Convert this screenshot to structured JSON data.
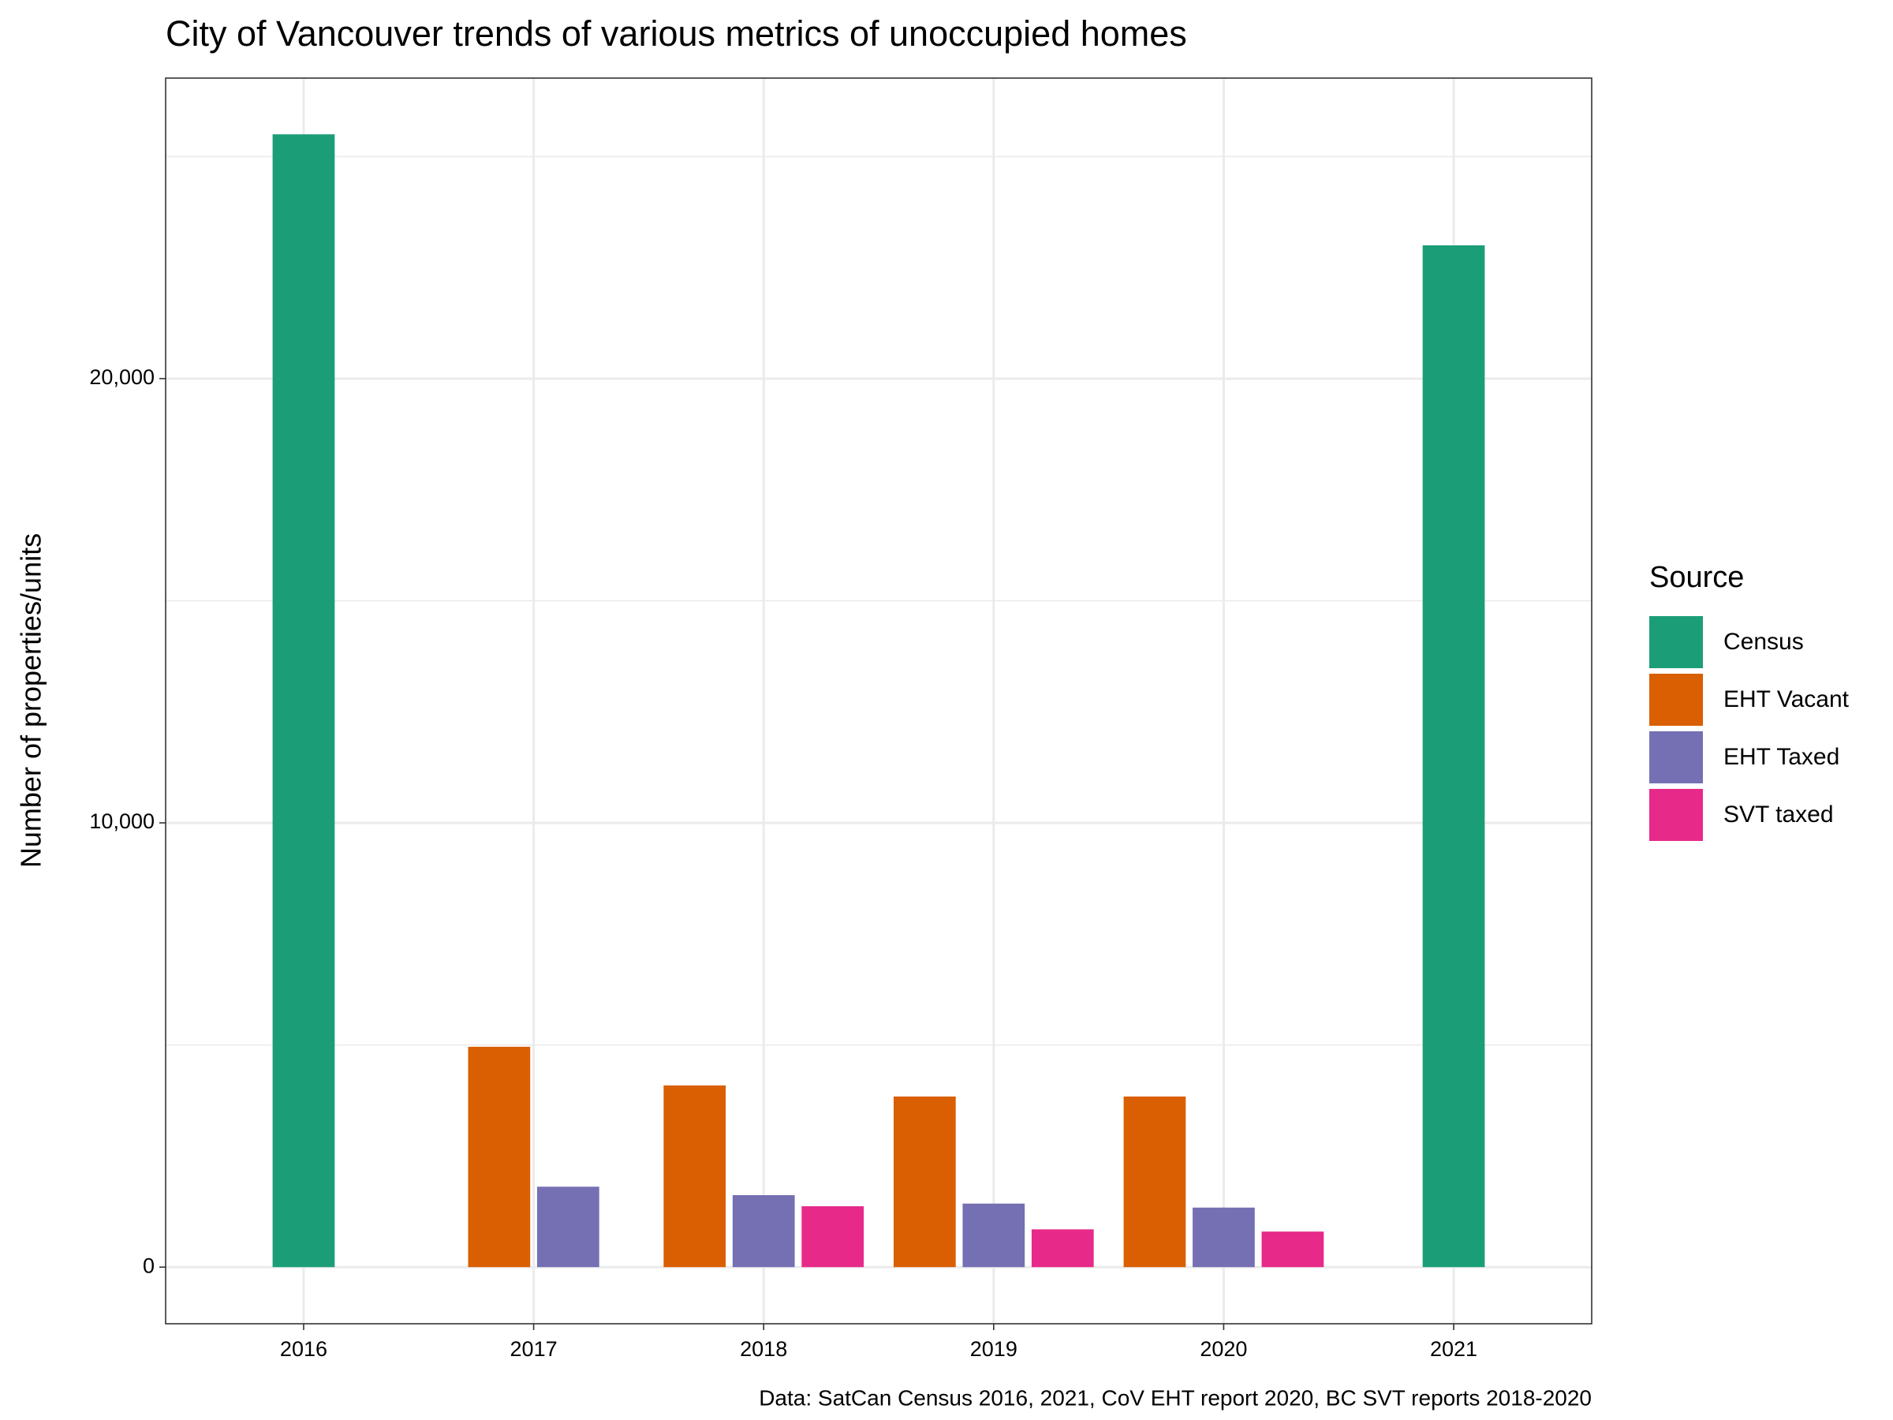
{
  "chart_data": {
    "type": "bar",
    "title": "City of Vancouver trends of various metrics of unoccupied homes",
    "y_label": "Number of properties/units",
    "caption": "Data: SatCan Census 2016, 2021, CoV EHT report 2020, BC SVT reports 2018-2020",
    "legend_title": "Source",
    "legend_position": "right",
    "categories": [
      "2016",
      "2017",
      "2018",
      "2019",
      "2020",
      "2021"
    ],
    "series": [
      {
        "name": "Census",
        "color": "#1b9e77",
        "values": [
          25500,
          null,
          null,
          null,
          null,
          23000
        ]
      },
      {
        "name": "EHT Vacant",
        "color": "#d95f02",
        "values": [
          null,
          4960,
          4090,
          3840,
          3840,
          null
        ]
      },
      {
        "name": "EHT Taxed",
        "color": "#7570b3",
        "values": [
          null,
          1810,
          1620,
          1430,
          1340,
          null
        ]
      },
      {
        "name": "SVT taxed",
        "color": "#e7298a",
        "values": [
          null,
          null,
          1370,
          850,
          800,
          null
        ]
      }
    ],
    "ylim": [
      -1275,
      26765
    ],
    "yticks": [
      0,
      {
        "value": 10000,
        "label": "10,000"
      },
      {
        "value": 20000,
        "label": "20,000"
      }
    ],
    "minor_yticks": [
      5000,
      15000,
      25000
    ],
    "grid": true
  }
}
